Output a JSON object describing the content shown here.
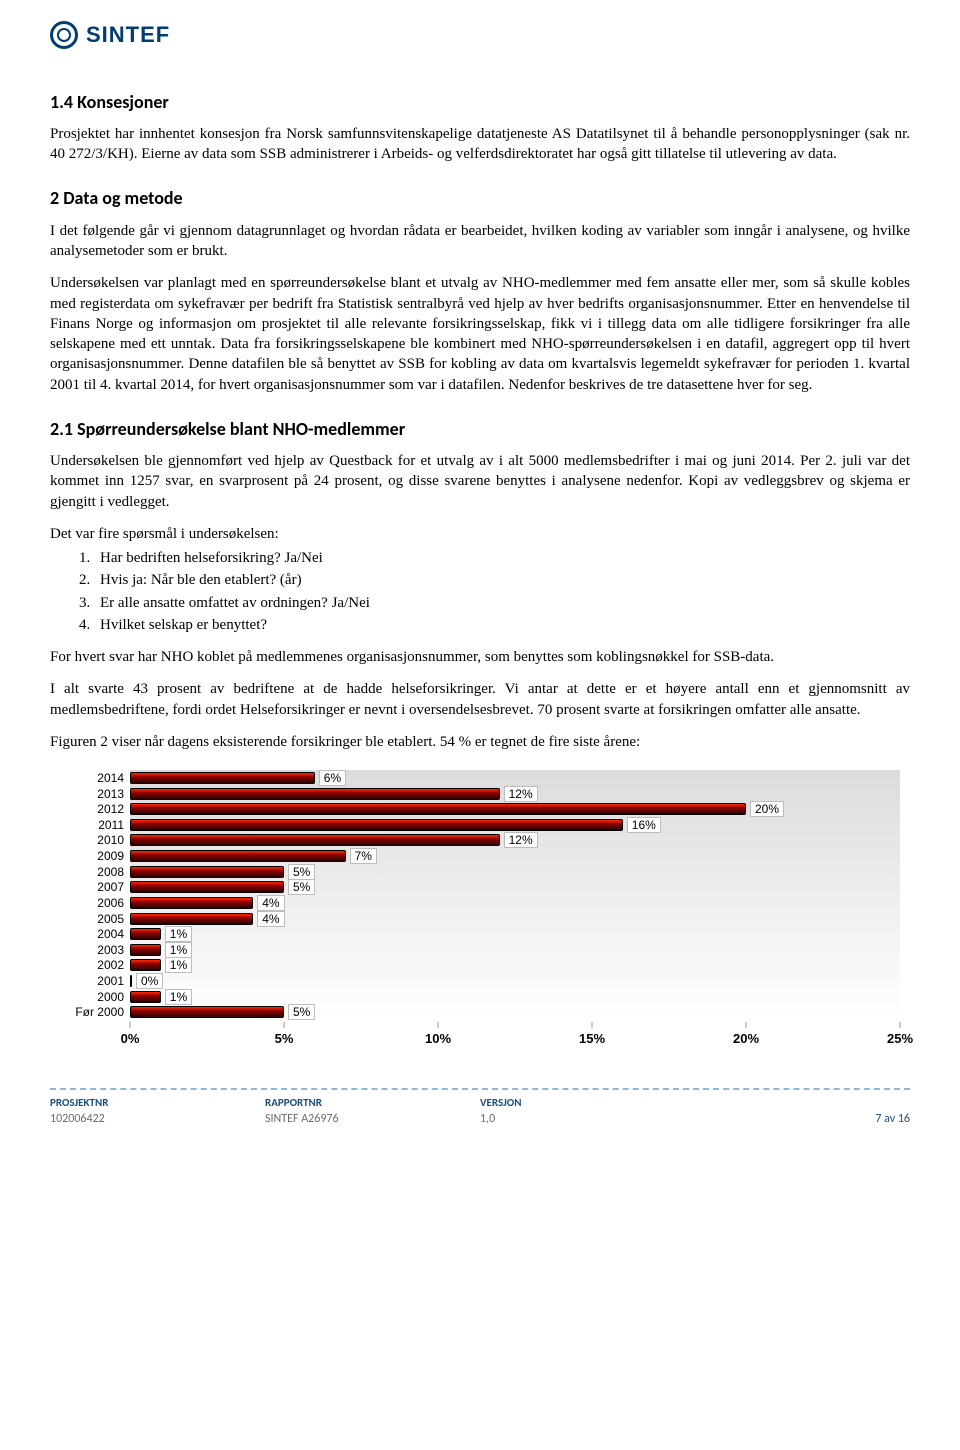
{
  "brand": {
    "name": "SINTEF",
    "color": "#003d73"
  },
  "sections": {
    "s14_title": "1.4  Konsesjoner",
    "s14_p1": "Prosjektet har innhentet konsesjon fra Norsk samfunnsvitenskapelige datatjeneste AS Datatilsynet til å behandle personopplysninger (sak nr. 40 272/3/KH). Eierne av data som SSB administrerer i Arbeids- og velferdsdirektoratet har også gitt tillatelse til utlevering av data.",
    "s2_title": "2   Data og metode",
    "s2_p1": "I det følgende går vi gjennom datagrunnlaget og hvordan rådata er bearbeidet, hvilken koding av variabler som inngår i analysene, og hvilke analysemetoder som er brukt.",
    "s2_p2": "Undersøkelsen var planlagt med en spørreundersøkelse blant et utvalg av NHO-medlemmer med fem ansatte eller mer, som så skulle kobles med registerdata om sykefravær per bedrift fra Statistisk sentralbyrå ved hjelp av hver bedrifts organisasjonsnummer. Etter en henvendelse til Finans Norge og informasjon om prosjektet til alle relevante forsikringsselskap, fikk vi i tillegg data om alle tidligere forsikringer fra alle selskapene med ett unntak. Data fra forsikringsselskapene ble kombinert med NHO-spørreundersøkelsen i en datafil, aggregert opp til hvert organisasjonsnummer. Denne datafilen ble så benyttet av SSB for kobling av data om kvartalsvis legemeldt sykefravær for perioden 1. kvartal 2001 til 4. kvartal 2014, for hvert organisasjonsnummer som var i datafilen. Nedenfor beskrives de tre datasettene hver for seg.",
    "s21_title": "2.1  Spørreundersøkelse blant NHO-medlemmer",
    "s21_p1": "Undersøkelsen ble gjennomført ved hjelp av Questback for et utvalg av i alt 5000 medlemsbedrifter i mai og juni 2014. Per 2. juli var det kommet inn 1257 svar, en svarprosent på 24 prosent, og disse svarene benyttes i analysene nedenfor. Kopi av vedleggsbrev og skjema er gjengitt i vedlegget.",
    "s21_intro": "Det var fire spørsmål i undersøkelsen:",
    "s21_list": [
      "Har bedriften helseforsikring? Ja/Nei",
      "Hvis ja: Når ble den etablert? (år)",
      "Er alle ansatte omfattet av ordningen? Ja/Nei",
      "Hvilket selskap er benyttet?"
    ],
    "s21_p2": "For hvert svar har NHO koblet på medlemmenes organisasjonsnummer, som benyttes som koblingsnøkkel for SSB-data.",
    "s21_p3": "I alt svarte 43 prosent av bedriftene at de hadde helseforsikringer. Vi antar at dette er et høyere antall enn et gjennomsnitt av medlemsbedriftene, fordi ordet Helseforsikringer er nevnt i oversendelsesbrevet. 70 prosent svarte at forsikringen omfatter alle ansatte.",
    "s21_p4": "Figuren 2 viser når dagens eksisterende forsikringer ble etablert. 54 % er tegnet de fire siste årene:"
  },
  "chart": {
    "type": "bar-horizontal",
    "x_max": 25,
    "x_ticks": [
      0,
      5,
      10,
      15,
      20,
      25
    ],
    "x_tick_labels": [
      "0%",
      "5%",
      "10%",
      "15%",
      "20%",
      "25%"
    ],
    "background_gradient_from": "#dcdcdc",
    "background_gradient_to": "#ffffff",
    "bar_gradient": [
      "#ff2a00",
      "#8a0000",
      "#2b0000"
    ],
    "bar_border": "#000000",
    "label_font": "Arial",
    "label_fontsize": 12,
    "x_label_fontsize": 13,
    "value_box_bg": "#ffffff",
    "value_box_border": "#bdbdbd",
    "rows": [
      {
        "label": "2014",
        "value": 6,
        "value_label": "6%"
      },
      {
        "label": "2013",
        "value": 12,
        "value_label": "12%"
      },
      {
        "label": "2012",
        "value": 20,
        "value_label": "20%"
      },
      {
        "label": "2011",
        "value": 16,
        "value_label": "16%"
      },
      {
        "label": "2010",
        "value": 12,
        "value_label": "12%"
      },
      {
        "label": "2009",
        "value": 7,
        "value_label": "7%"
      },
      {
        "label": "2008",
        "value": 5,
        "value_label": "5%"
      },
      {
        "label": "2007",
        "value": 5,
        "value_label": "5%"
      },
      {
        "label": "2006",
        "value": 4,
        "value_label": "4%"
      },
      {
        "label": "2005",
        "value": 4,
        "value_label": "4%"
      },
      {
        "label": "2004",
        "value": 1,
        "value_label": "1%"
      },
      {
        "label": "2003",
        "value": 1,
        "value_label": "1%"
      },
      {
        "label": "2002",
        "value": 1,
        "value_label": "1%"
      },
      {
        "label": "2001",
        "value": 0,
        "value_label": "0%"
      },
      {
        "label": "2000",
        "value": 1,
        "value_label": "1%"
      },
      {
        "label": "Før 2000",
        "value": 5,
        "value_label": "5%"
      }
    ]
  },
  "footer": {
    "col1_label": "PROSJEKTNR",
    "col1_value": "102006422",
    "col2_label": "RAPPORTNR",
    "col2_value": "SINTEF A26976",
    "col3_label": "VERSJON",
    "col3_value": "1,0",
    "page": "7 av 16"
  }
}
